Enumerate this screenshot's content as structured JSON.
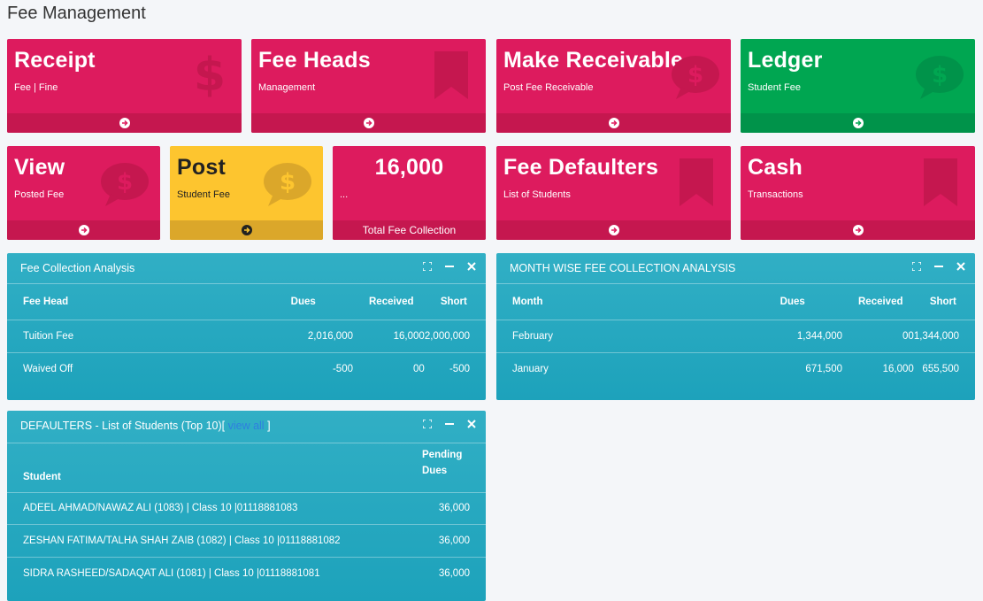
{
  "page": {
    "title": "Fee Management"
  },
  "tiles": {
    "receipt": {
      "title": "Receipt",
      "sub": "Fee | Fine"
    },
    "fee_heads": {
      "title": "Fee Heads",
      "sub": "Management"
    },
    "make_receivable": {
      "title": "Make Receivable",
      "sub": "Post Fee Receivable"
    },
    "ledger": {
      "title": "Ledger",
      "sub": "Student Fee"
    },
    "view": {
      "title": "View",
      "sub": "Posted Fee"
    },
    "post": {
      "title": "Post",
      "sub": "Student Fee"
    },
    "total": {
      "title": "16,000",
      "sub": "...",
      "footer": "Total Fee Collection"
    },
    "fee_defaulters": {
      "title": "Fee Defaulters",
      "sub": "List of Students"
    },
    "cash": {
      "title": "Cash",
      "sub": "Transactions"
    }
  },
  "fee_collection": {
    "title": "Fee Collection Analysis",
    "columns": [
      "Fee Head",
      "Dues",
      "Received",
      "Short"
    ],
    "rows": [
      {
        "head": "Tuition Fee",
        "dues": "2,016,000",
        "received": "16,000",
        "short": "2,000,000"
      },
      {
        "head": "Waived Off",
        "dues": "-500",
        "received": "00",
        "short": "-500"
      }
    ]
  },
  "month_wise": {
    "title": "MONTH WISE FEE COLLECTION ANALYSIS",
    "columns": [
      "Month",
      "Dues",
      "Received",
      "Short"
    ],
    "rows": [
      {
        "month": "February",
        "dues": "1,344,000",
        "received": "00",
        "short": "1,344,000"
      },
      {
        "month": "January",
        "dues": "671,500",
        "received": "16,000",
        "short": "655,500"
      }
    ]
  },
  "defaulters": {
    "title": "DEFAULTERS - List of Students (Top 10)",
    "bracket_open": "[",
    "view_all": " view all",
    "bracket_close": " ]",
    "columns": [
      "Student",
      "Pending",
      "Dues"
    ],
    "rows": [
      {
        "student": "ADEEL AHMAD/NAWAZ ALI (1083) | Class 10 |01118881083",
        "pending": "36,000"
      },
      {
        "student": "ZESHAN FATIMA/TALHA SHAH ZAIB (1082) | Class 10 |01118881082",
        "pending": "36,000"
      },
      {
        "student": "SIDRA RASHEED/SADAQAT ALI (1081) | Class 10 |01118881081",
        "pending": "36,000"
      }
    ]
  },
  "colors": {
    "pink": "#dd1b5e",
    "green": "#00a651",
    "yellow": "#fdc52f",
    "teal": "#27a9c1"
  },
  "icons": {
    "receipt": "dollar-icon",
    "fee_heads": "bookmark-icon",
    "make_receivable": "dollar-speech-icon",
    "ledger": "dollar-speech-icon",
    "view": "dollar-speech-icon",
    "post": "dollar-speech-icon",
    "fee_defaulters": "bookmark-icon",
    "cash": "bookmark-icon"
  }
}
